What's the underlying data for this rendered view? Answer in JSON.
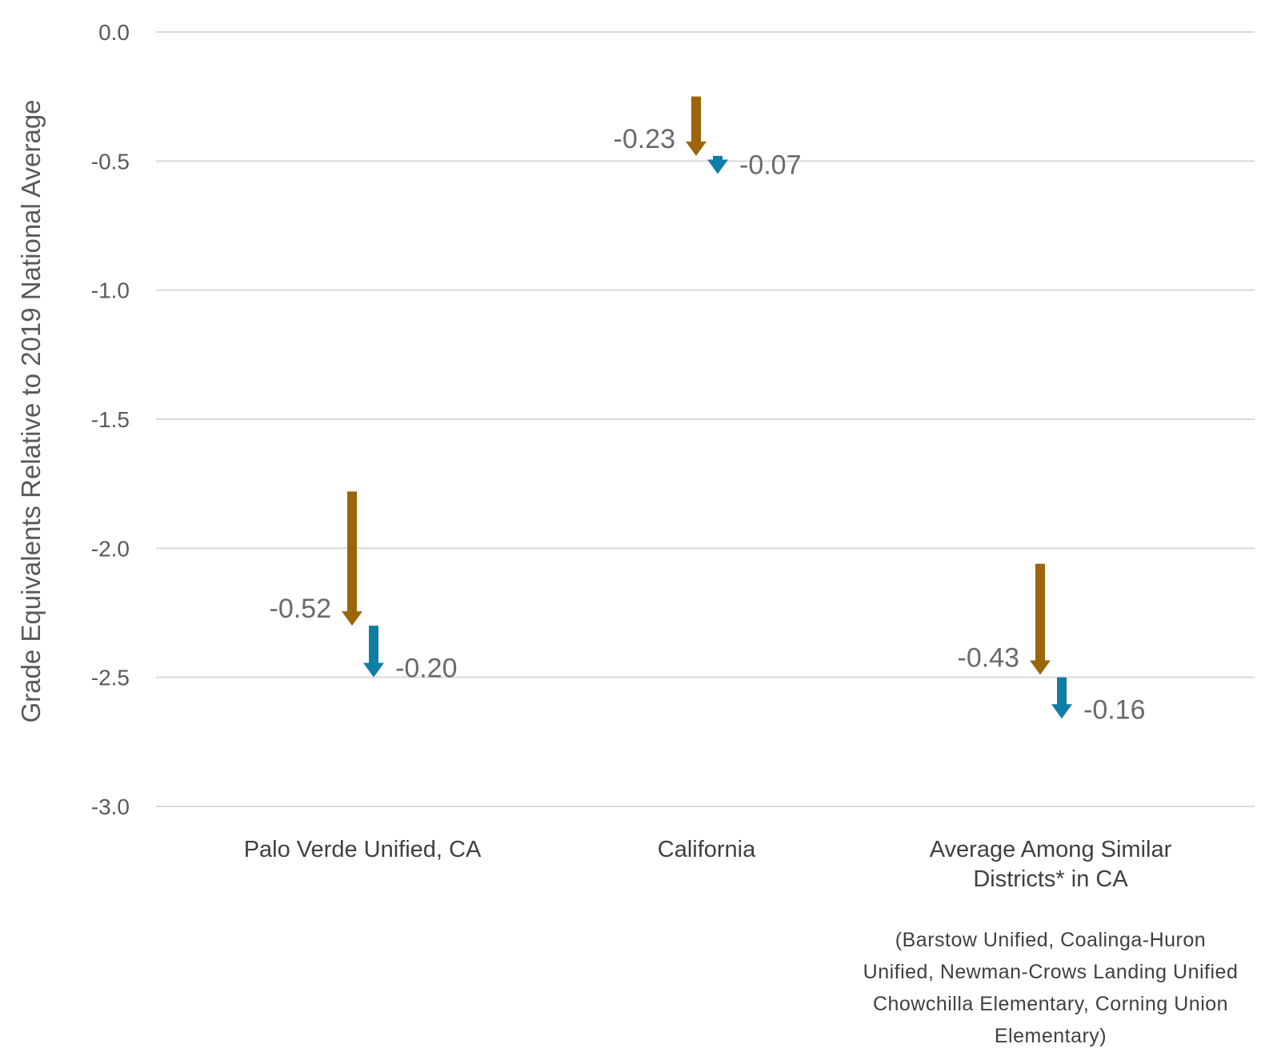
{
  "chart_data": {
    "type": "arrow",
    "ylabel": "Grade Equivalents Relative to 2019 National Average",
    "ylim": [
      -3.0,
      0.0
    ],
    "yticks": [
      0.0,
      -0.5,
      -1.0,
      -1.5,
      -2.0,
      -2.5,
      -3.0
    ],
    "ytick_labels": [
      "0.0",
      "-0.5",
      "-1.0",
      "-1.5",
      "-2.0",
      "-2.5",
      "-3.0"
    ],
    "grid": true,
    "categories": [
      {
        "label_lines": [
          "Palo Verde Unified, CA"
        ],
        "note_lines": []
      },
      {
        "label_lines": [
          "California"
        ],
        "note_lines": []
      },
      {
        "label_lines": [
          "Average Among Similar",
          "Districts* in CA"
        ],
        "note_lines": [
          "(Barstow Unified, Coalinga-Huron",
          "Unified, Newman-Crows Landing Unified",
          "Chowchilla Elementary, Corning Union",
          "Elementary)"
        ]
      }
    ],
    "series": [
      {
        "color": "#9C6508",
        "arrows": [
          {
            "start": -1.78,
            "end": -2.3,
            "label": "-0.52"
          },
          {
            "start": -0.25,
            "end": -0.48,
            "label": "-0.23"
          },
          {
            "start": -2.06,
            "end": -2.49,
            "label": "-0.43"
          }
        ]
      },
      {
        "color": "#0F7EA6",
        "arrows": [
          {
            "start": -2.3,
            "end": -2.5,
            "label": "-0.20"
          },
          {
            "start": -0.48,
            "end": -0.55,
            "label": "-0.07"
          },
          {
            "start": -2.5,
            "end": -2.66,
            "label": "-0.16"
          }
        ]
      }
    ]
  }
}
